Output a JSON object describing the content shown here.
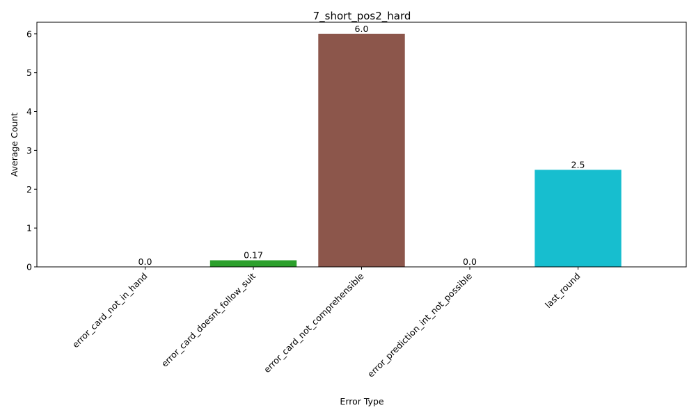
{
  "chart_data": {
    "type": "bar",
    "title": "7_short_pos2_hard",
    "xlabel": "Error Type",
    "ylabel": "Average Count",
    "categories": [
      "error_card_not_in_hand",
      "error_card_doesnt_follow_suit",
      "error_card_not_comprehensible",
      "error_prediction_int_not_possible",
      "last_round"
    ],
    "values": [
      0.0,
      0.17,
      6.0,
      0.0,
      2.5
    ],
    "value_labels": [
      "0.0",
      "0.17",
      "6.0",
      "0.0",
      "2.5"
    ],
    "colors": [
      "#1f77b4",
      "#2ca02c",
      "#8c564b",
      "#e377c2",
      "#17becf"
    ],
    "ylim": [
      0,
      6.3
    ],
    "yticks": [
      0,
      1,
      2,
      3,
      4,
      5,
      6
    ],
    "grid": false,
    "legend": "none"
  }
}
